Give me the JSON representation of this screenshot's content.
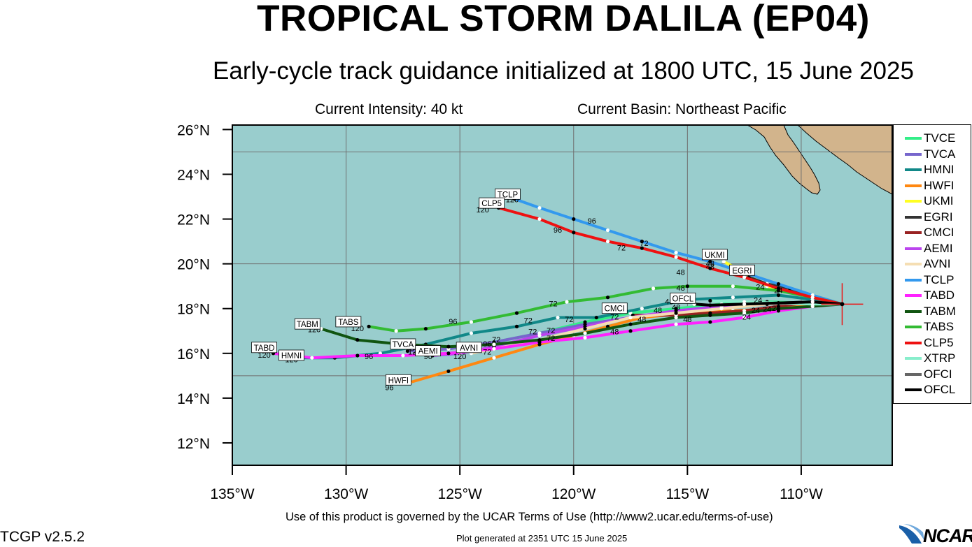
{
  "header": {
    "title": "TROPICAL STORM DALILA (EP04)",
    "subtitle": "Early-cycle track guidance initialized at 1800 UTC, 15 June 2025",
    "intensity": "Current Intensity: 40 kt",
    "basin": "Current Basin: Northeast Pacific"
  },
  "footer": {
    "terms": "Use of this product is governed by the UCAR Terms of Use (http://www2.ucar.edu/terms-of-use)",
    "version": "TCGP v2.5.2",
    "generated": "Plot generated at 2351 UTC   15 June 2025",
    "logo_text": "NCAR"
  },
  "colors": {
    "ocean": "#99cdcd",
    "land": "#d2b48c",
    "grid": "#707070"
  },
  "map": {
    "lon_range": [
      -135,
      -106
    ],
    "lat_range": [
      11,
      26.2
    ],
    "lon_ticks": [
      {
        "value": -135,
        "label": "135°W"
      },
      {
        "value": -130,
        "label": "130°W"
      },
      {
        "value": -125,
        "label": "125°W"
      },
      {
        "value": -120,
        "label": "120°W"
      },
      {
        "value": -115,
        "label": "115°W"
      },
      {
        "value": -110,
        "label": "110°W"
      }
    ],
    "lat_ticks": [
      {
        "value": 12,
        "label": "12°N"
      },
      {
        "value": 14,
        "label": "14°N"
      },
      {
        "value": 16,
        "label": "16°N"
      },
      {
        "value": 18,
        "label": "18°N"
      },
      {
        "value": 20,
        "label": "20°N"
      },
      {
        "value": 22,
        "label": "22°N"
      },
      {
        "value": 24,
        "label": "24°N"
      },
      {
        "value": 26,
        "label": "26°N"
      }
    ],
    "grid_lons": [
      -130,
      -125,
      -120,
      -115,
      -110
    ],
    "grid_lats": [
      15,
      20,
      25
    ],
    "storm_position": {
      "lon": -108.2,
      "lat": 18.2
    }
  },
  "tracks": [
    {
      "model": "TVCE",
      "color": "#33ee88",
      "points": [
        [
          -108.2,
          18.2
        ],
        [
          -109.5,
          18.25
        ],
        [
          -111.5,
          18.3
        ],
        [
          -113.5,
          18.2
        ],
        [
          -115.5,
          18.0
        ],
        [
          -117.5,
          17.8
        ],
        [
          -119.5,
          17.4
        ],
        [
          -121.5,
          16.9
        ],
        [
          -123.5,
          16.5
        ],
        [
          -125.5,
          16.2
        ],
        [
          -127,
          16.1
        ]
      ]
    },
    {
      "model": "TVCA",
      "color": "#7766cc",
      "points": [
        [
          -108.2,
          18.2
        ],
        [
          -109.5,
          18.25
        ],
        [
          -111.5,
          18.25
        ],
        [
          -113.5,
          18.1
        ],
        [
          -115.5,
          17.9
        ],
        [
          -117.5,
          17.6
        ],
        [
          -119.5,
          17.3
        ],
        [
          -121.5,
          16.9
        ],
        [
          -123.5,
          16.5
        ],
        [
          -125.5,
          16.2
        ],
        [
          -127.3,
          16.1
        ]
      ]
    },
    {
      "model": "HMNI",
      "color": "#118888",
      "points": [
        [
          -108.2,
          18.2
        ],
        [
          -109.5,
          18.4
        ],
        [
          -111,
          18.6
        ],
        [
          -113,
          18.5
        ],
        [
          -115,
          18.4
        ],
        [
          -117,
          18.0
        ],
        [
          -119,
          17.6
        ],
        [
          -120.7,
          17.6
        ],
        [
          -122.5,
          17.2
        ],
        [
          -124.5,
          16.9
        ],
        [
          -126.5,
          16.4
        ],
        [
          -128.5,
          16.0
        ],
        [
          -130.5,
          15.8
        ],
        [
          -132.5,
          15.8
        ]
      ]
    },
    {
      "model": "HWFI",
      "color": "#ff8811",
      "points": [
        [
          -108.2,
          18.2
        ],
        [
          -109.5,
          18.15
        ],
        [
          -111,
          18.0
        ],
        [
          -113,
          17.9
        ],
        [
          -115,
          17.8
        ],
        [
          -117,
          17.6
        ],
        [
          -118.5,
          17.2
        ],
        [
          -120,
          16.8
        ],
        [
          -121.5,
          16.4
        ],
        [
          -123.5,
          15.8
        ],
        [
          -125.5,
          15.2
        ],
        [
          -127.2,
          14.7
        ]
      ]
    },
    {
      "model": "UKMI",
      "color": "#ffff22",
      "points": [
        [
          -108.2,
          18.2
        ],
        [
          -109.5,
          18.6
        ],
        [
          -110.5,
          18.8
        ],
        [
          -111.5,
          19.0
        ],
        [
          -112.5,
          19.6
        ],
        [
          -113.4,
          20.1
        ]
      ]
    },
    {
      "model": "EGRI",
      "color": "#333333",
      "points": [
        [
          -108.2,
          18.2
        ],
        [
          -109.5,
          18.5
        ],
        [
          -110.5,
          18.9
        ],
        [
          -111.5,
          19.1
        ],
        [
          -112.3,
          19.4
        ]
      ]
    },
    {
      "model": "CMCI",
      "color": "#992222",
      "points": [
        [
          -108.2,
          18.2
        ],
        [
          -109.5,
          18.3
        ],
        [
          -111,
          18.1
        ],
        [
          -112.5,
          17.9
        ],
        [
          -114,
          17.8
        ],
        [
          -115.5,
          17.7
        ],
        [
          -117.4,
          17.7
        ]
      ]
    },
    {
      "model": "AEMI",
      "color": "#bb44ee",
      "points": [
        [
          -108.2,
          18.2
        ],
        [
          -109.5,
          18.3
        ],
        [
          -111.5,
          18.2
        ],
        [
          -113.5,
          18.1
        ],
        [
          -115.5,
          17.9
        ],
        [
          -117.5,
          17.6
        ],
        [
          -119.5,
          17.2
        ],
        [
          -121.5,
          16.8
        ],
        [
          -123.5,
          16.3
        ],
        [
          -125,
          16.0
        ],
        [
          -126.2,
          15.9
        ]
      ]
    },
    {
      "model": "AVNI",
      "color": "#f5deb3",
      "points": [
        [
          -108.2,
          18.2
        ],
        [
          -109.5,
          18.3
        ],
        [
          -111.5,
          18.2
        ],
        [
          -113.5,
          18.0
        ],
        [
          -115.5,
          17.8
        ],
        [
          -117.5,
          17.6
        ],
        [
          -119.5,
          17.1
        ],
        [
          -121.5,
          16.6
        ],
        [
          -123.5,
          16.2
        ],
        [
          -124.5,
          16.0
        ]
      ]
    },
    {
      "model": "TCLP",
      "color": "#3399ee",
      "points": [
        [
          -108.2,
          18.2
        ],
        [
          -109.5,
          18.6
        ],
        [
          -111,
          19.1
        ],
        [
          -112.5,
          19.6
        ],
        [
          -114,
          20.1
        ],
        [
          -115.5,
          20.5
        ],
        [
          -117,
          21.0
        ],
        [
          -118.5,
          21.5
        ],
        [
          -120,
          22.0
        ],
        [
          -121.5,
          22.5
        ],
        [
          -122.6,
          22.9
        ]
      ]
    },
    {
      "model": "TABD",
      "color": "#ff22ff",
      "points": [
        [
          -108.2,
          18.2
        ],
        [
          -109.5,
          18.1
        ],
        [
          -111,
          17.9
        ],
        [
          -112.5,
          17.6
        ],
        [
          -114,
          17.4
        ],
        [
          -115.5,
          17.3
        ],
        [
          -117.5,
          17.0
        ],
        [
          -119.5,
          16.7
        ],
        [
          -121.5,
          16.5
        ],
        [
          -123.5,
          16.2
        ],
        [
          -125.5,
          16.0
        ],
        [
          -127.5,
          15.9
        ],
        [
          -129.5,
          15.9
        ],
        [
          -131.5,
          15.8
        ],
        [
          -133.2,
          16.0
        ]
      ]
    },
    {
      "model": "TABM",
      "color": "#115511",
      "points": [
        [
          -108.2,
          18.2
        ],
        [
          -109.5,
          18.1
        ],
        [
          -111,
          18.0
        ],
        [
          -112.5,
          17.8
        ],
        [
          -114,
          17.7
        ],
        [
          -115.5,
          17.6
        ],
        [
          -117.5,
          17.3
        ],
        [
          -119.5,
          16.9
        ],
        [
          -121.5,
          16.6
        ],
        [
          -123.5,
          16.4
        ],
        [
          -125.5,
          16.3
        ],
        [
          -127.5,
          16.4
        ],
        [
          -129.5,
          16.6
        ],
        [
          -131.1,
          17.1
        ]
      ]
    },
    {
      "model": "TABS",
      "color": "#33bb33",
      "points": [
        [
          -108.2,
          18.2
        ],
        [
          -109.5,
          18.5
        ],
        [
          -111,
          18.8
        ],
        [
          -113,
          19.0
        ],
        [
          -115,
          19.0
        ],
        [
          -116.5,
          18.9
        ],
        [
          -118.5,
          18.5
        ],
        [
          -120.3,
          18.3
        ],
        [
          -122.5,
          17.8
        ],
        [
          -124.5,
          17.4
        ],
        [
          -126.5,
          17.1
        ],
        [
          -127.8,
          17.0
        ],
        [
          -129,
          17.2
        ]
      ]
    },
    {
      "model": "CLP5",
      "color": "#ee1111",
      "points": [
        [
          -108.2,
          18.2
        ],
        [
          -109.5,
          18.5
        ],
        [
          -111,
          18.9
        ],
        [
          -112.5,
          19.4
        ],
        [
          -114,
          19.8
        ],
        [
          -115.5,
          20.3
        ],
        [
          -117,
          20.7
        ],
        [
          -118.5,
          21.0
        ],
        [
          -120,
          21.4
        ],
        [
          -121.5,
          22.0
        ],
        [
          -123.3,
          22.5
        ]
      ]
    },
    {
      "model": "XTRP",
      "color": "#88eecc",
      "points": [
        [
          -108.2,
          18.2
        ],
        [
          -109.5,
          18.2
        ],
        [
          -111,
          18.25
        ],
        [
          -112.5,
          18.3
        ],
        [
          -114,
          18.35
        ]
      ]
    },
    {
      "model": "OFCI",
      "color": "#666666",
      "points": [
        [
          -108.2,
          18.2
        ],
        [
          -109.5,
          18.3
        ],
        [
          -111,
          18.25
        ],
        [
          -112.5,
          18.2
        ],
        [
          -114,
          18.15
        ]
      ]
    },
    {
      "model": "OFCL",
      "color": "#000000",
      "points": [
        [
          -108.2,
          18.2
        ],
        [
          -109.5,
          18.3
        ],
        [
          -111,
          18.25
        ],
        [
          -112.5,
          18.2
        ],
        [
          -114,
          18.15
        ],
        [
          -114.7,
          18.2
        ]
      ]
    }
  ],
  "track_labels": [
    {
      "text": "TCLP",
      "lon": -122.9,
      "lat": 23.1
    },
    {
      "text": "CLP5",
      "lon": -123.6,
      "lat": 22.7
    },
    {
      "text": "UKMI",
      "lon": -113.8,
      "lat": 20.4
    },
    {
      "text": "EGRI",
      "lon": -112.6,
      "lat": 19.7
    },
    {
      "text": "OFCL",
      "lon": -115.2,
      "lat": 18.45
    },
    {
      "text": "CMCI",
      "lon": -118.2,
      "lat": 18.0
    },
    {
      "text": "TABS",
      "lon": -129.9,
      "lat": 17.4
    },
    {
      "text": "TABM",
      "lon": -131.7,
      "lat": 17.3
    },
    {
      "text": "TABD",
      "lon": -133.6,
      "lat": 16.25
    },
    {
      "text": "HMNI",
      "lon": -132.4,
      "lat": 15.9
    },
    {
      "text": "TVCA",
      "lon": -127.5,
      "lat": 16.4
    },
    {
      "text": "AEMI",
      "lon": -126.4,
      "lat": 16.1
    },
    {
      "text": "AVNI",
      "lon": -124.6,
      "lat": 16.25
    },
    {
      "text": "HWFI",
      "lon": -127.7,
      "lat": 14.8
    }
  ],
  "hour_labels": [
    {
      "text": "120",
      "lon": -122.7,
      "lat": 22.75
    },
    {
      "text": "120",
      "lon": -124.0,
      "lat": 22.3
    },
    {
      "text": "96",
      "lon": -119.2,
      "lat": 21.8
    },
    {
      "text": "96",
      "lon": -120.7,
      "lat": 21.4
    },
    {
      "text": "72",
      "lon": -116.9,
      "lat": 20.8
    },
    {
      "text": "72",
      "lon": -117.9,
      "lat": 20.6
    },
    {
      "text": "48",
      "lon": -114.0,
      "lat": 19.9
    },
    {
      "text": "48",
      "lon": -114.0,
      "lat": 19.75
    },
    {
      "text": "48",
      "lon": -115.3,
      "lat": 19.5
    },
    {
      "text": "48",
      "lon": -115.3,
      "lat": 18.8
    },
    {
      "text": "24",
      "lon": -111.8,
      "lat": 18.85
    },
    {
      "text": "24",
      "lon": -111.0,
      "lat": 18.7
    },
    {
      "text": "24",
      "lon": -111.9,
      "lat": 18.25
    },
    {
      "text": "24",
      "lon": -111.5,
      "lat": 17.85
    },
    {
      "text": "24",
      "lon": -112.0,
      "lat": 17.8
    },
    {
      "text": "24",
      "lon": -111.1,
      "lat": 17.9
    },
    {
      "text": "24",
      "lon": -112.4,
      "lat": 17.5
    },
    {
      "text": "48",
      "lon": -115.8,
      "lat": 18.2
    },
    {
      "text": "48",
      "lon": -115.5,
      "lat": 17.95
    },
    {
      "text": "48",
      "lon": -116.3,
      "lat": 17.8
    },
    {
      "text": "48",
      "lon": -117.0,
      "lat": 17.4
    },
    {
      "text": "48",
      "lon": -115.0,
      "lat": 17.4
    },
    {
      "text": "48",
      "lon": -118.2,
      "lat": 16.85
    },
    {
      "text": "72",
      "lon": -120.9,
      "lat": 18.1
    },
    {
      "text": "72",
      "lon": -122.0,
      "lat": 17.35
    },
    {
      "text": "72",
      "lon": -120.2,
      "lat": 17.4
    },
    {
      "text": "72",
      "lon": -118.2,
      "lat": 17.5
    },
    {
      "text": "72",
      "lon": -121.8,
      "lat": 16.85
    },
    {
      "text": "72",
      "lon": -123.4,
      "lat": 16.5
    },
    {
      "text": "72",
      "lon": -121.0,
      "lat": 16.9
    },
    {
      "text": "72",
      "lon": -121.0,
      "lat": 16.55
    },
    {
      "text": "72",
      "lon": -123.8,
      "lat": 15.95
    },
    {
      "text": "96",
      "lon": -125.3,
      "lat": 17.3
    },
    {
      "text": "96",
      "lon": -123.8,
      "lat": 16.3
    },
    {
      "text": "96",
      "lon": -124.4,
      "lat": 16.05
    },
    {
      "text": "96",
      "lon": -127.2,
      "lat": 16.1
    },
    {
      "text": "96",
      "lon": -126.4,
      "lat": 15.75
    },
    {
      "text": "96",
      "lon": -129.0,
      "lat": 15.75
    },
    {
      "text": "96",
      "lon": -128.1,
      "lat": 14.35
    },
    {
      "text": "120",
      "lon": -127.0,
      "lat": 15.95
    },
    {
      "text": "120",
      "lon": -125.0,
      "lat": 15.75
    },
    {
      "text": "120",
      "lon": -129.5,
      "lat": 17.0
    },
    {
      "text": "120",
      "lon": -131.4,
      "lat": 16.95
    },
    {
      "text": "120",
      "lon": -133.6,
      "lat": 15.8
    },
    {
      "text": "120",
      "lon": -132.4,
      "lat": 15.6
    }
  ],
  "legend": {
    "items": [
      {
        "label": "TVCE",
        "color": "#33ee88"
      },
      {
        "label": "TVCA",
        "color": "#7766cc"
      },
      {
        "label": "HMNI",
        "color": "#118888"
      },
      {
        "label": "HWFI",
        "color": "#ff8811"
      },
      {
        "label": "UKMI",
        "color": "#ffff22"
      },
      {
        "label": "EGRI",
        "color": "#333333"
      },
      {
        "label": "CMCI",
        "color": "#992222"
      },
      {
        "label": "AEMI",
        "color": "#bb44ee"
      },
      {
        "label": "AVNI",
        "color": "#f5deb3"
      },
      {
        "label": "TCLP",
        "color": "#3399ee"
      },
      {
        "label": "TABD",
        "color": "#ff22ff"
      },
      {
        "label": "TABM",
        "color": "#115511"
      },
      {
        "label": "TABS",
        "color": "#33bb33"
      },
      {
        "label": "CLP5",
        "color": "#ee1111"
      },
      {
        "label": "XTRP",
        "color": "#88eecc"
      },
      {
        "label": "OFCI",
        "color": "#666666"
      },
      {
        "label": "OFCL",
        "color": "#000000"
      }
    ]
  }
}
